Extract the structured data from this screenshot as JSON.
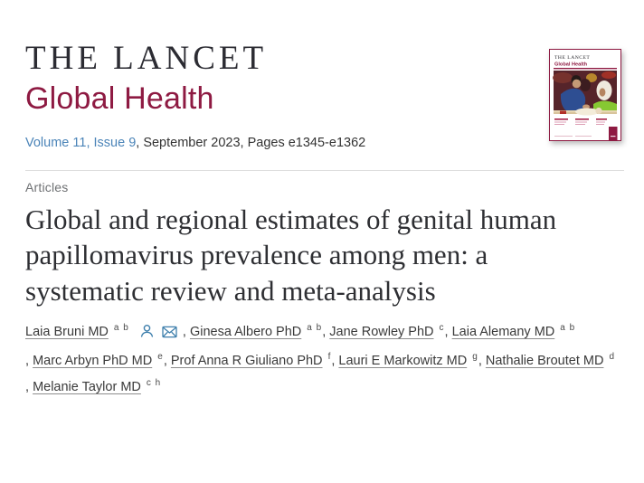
{
  "masthead": {
    "journal": "THE LANCET",
    "edition": "Global Health"
  },
  "issue_line": {
    "link": "Volume 11, Issue 9",
    "rest": ", September 2023, Pages e1345-e1362"
  },
  "article": {
    "section": "Articles",
    "title": "Global and regional estimates of genital human\npapillomavirus prevalence among men: a\nsystematic review and meta-analysis"
  },
  "authors": [
    {
      "name": "Laia Bruni MD",
      "sup": "a b",
      "has_icons": true
    },
    {
      "name": "Ginesa Albero PhD",
      "sup": "a b"
    },
    {
      "name": "Jane Rowley PhD",
      "sup": "c"
    },
    {
      "name": "Laia Alemany MD",
      "sup": "a b"
    },
    {
      "name": "Marc Arbyn PhD MD",
      "sup": "e"
    },
    {
      "name": "Prof Anna R Giuliano PhD",
      "sup": "f"
    },
    {
      "name": "Lauri E Markowitz MD",
      "sup": "g"
    },
    {
      "name": "Nathalie Broutet MD",
      "sup": "d"
    },
    {
      "name": "Melanie Taylor MD",
      "sup": "c h"
    }
  ],
  "icons": {
    "author_profile": "person-icon",
    "correspondence": "envelope-icon"
  },
  "cover": {
    "line1": "THE LANCET",
    "line2": "Global Health"
  },
  "colors": {
    "maroon": "#8E1A42",
    "link_blue": "#4B84B8",
    "icon_blue": "#3E7FAC",
    "text_dark": "#2c2c33",
    "section_gray": "#6e7073",
    "divider_gray": "#dedede"
  }
}
